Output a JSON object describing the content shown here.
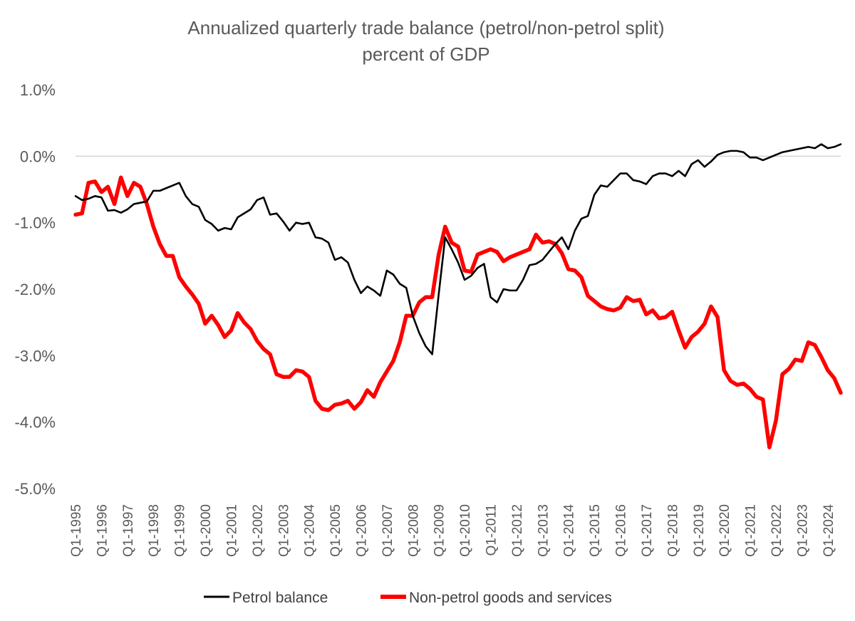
{
  "chart_data": {
    "type": "line",
    "title": "Annualized quarterly trade balance (petrol/non-petrol split)",
    "subtitle": "percent of GDP",
    "ylim": [
      -5.0,
      1.0
    ],
    "yticks": [
      1.0,
      0.0,
      -1.0,
      -2.0,
      -3.0,
      -4.0,
      -5.0
    ],
    "ytick_labels": [
      "1.0%",
      "0.0%",
      "-1.0%",
      "-2.0%",
      "-3.0%",
      "-4.0%",
      "-5.0%"
    ],
    "grid": false,
    "zero_line": true,
    "legend_position": "bottom",
    "x_start": "Q1-1995",
    "x_labels": [
      "Q1-1995",
      "Q1-1996",
      "Q1-1997",
      "Q1-1998",
      "Q1-1999",
      "Q1-2000",
      "Q1-2001",
      "Q1-2002",
      "Q1-2003",
      "Q1-2004",
      "Q1-2005",
      "Q1-2006",
      "Q1-2007",
      "Q1-2008",
      "Q1-2009",
      "Q1-2010",
      "Q1-2011",
      "Q1-2012",
      "Q1-2013",
      "Q1-2014",
      "Q1-2015",
      "Q1-2016",
      "Q1-2017",
      "Q1-2018",
      "Q1-2019",
      "Q1-2020",
      "Q1-2021",
      "Q1-2022",
      "Q1-2023",
      "Q1-2024"
    ],
    "series": [
      {
        "name": "Petrol balance",
        "color": "#000000",
        "values": [
          -0.6,
          -0.66,
          -0.64,
          -0.6,
          -0.62,
          -0.82,
          -0.81,
          -0.85,
          -0.8,
          -0.72,
          -0.7,
          -0.68,
          -0.52,
          -0.52,
          -0.48,
          -0.44,
          -0.4,
          -0.6,
          -0.72,
          -0.76,
          -0.96,
          -1.02,
          -1.12,
          -1.08,
          -1.1,
          -0.92,
          -0.86,
          -0.8,
          -0.66,
          -0.62,
          -0.88,
          -0.86,
          -0.98,
          -1.12,
          -1.0,
          -1.02,
          -1.0,
          -1.22,
          -1.24,
          -1.3,
          -1.56,
          -1.52,
          -1.6,
          -1.86,
          -2.06,
          -1.96,
          -2.02,
          -2.1,
          -1.72,
          -1.78,
          -1.92,
          -1.98,
          -2.4,
          -2.66,
          -2.86,
          -2.98,
          -2.08,
          -1.22,
          -1.4,
          -1.6,
          -1.86,
          -1.8,
          -1.68,
          -1.62,
          -2.12,
          -2.2,
          -2.0,
          -2.02,
          -2.02,
          -1.86,
          -1.64,
          -1.62,
          -1.56,
          -1.44,
          -1.32,
          -1.22,
          -1.4,
          -1.12,
          -0.94,
          -0.9,
          -0.58,
          -0.44,
          -0.46,
          -0.36,
          -0.26,
          -0.26,
          -0.36,
          -0.38,
          -0.42,
          -0.3,
          -0.26,
          -0.26,
          -0.3,
          -0.22,
          -0.3,
          -0.12,
          -0.06,
          -0.16,
          -0.08,
          0.02,
          0.06,
          0.08,
          0.08,
          0.06,
          -0.02,
          -0.02,
          -0.06,
          -0.02,
          0.02,
          0.06,
          0.08,
          0.1,
          0.12,
          0.14,
          0.12,
          0.18,
          0.12,
          0.14,
          0.18
        ]
      },
      {
        "name": "Non-petrol goods and services",
        "color": "#ff0000",
        "values": [
          -0.88,
          -0.86,
          -0.4,
          -0.38,
          -0.54,
          -0.46,
          -0.72,
          -0.32,
          -0.6,
          -0.4,
          -0.46,
          -0.72,
          -1.06,
          -1.32,
          -1.5,
          -1.5,
          -1.82,
          -1.96,
          -2.08,
          -2.22,
          -2.52,
          -2.4,
          -2.54,
          -2.72,
          -2.62,
          -2.36,
          -2.5,
          -2.6,
          -2.78,
          -2.9,
          -2.98,
          -3.28,
          -3.32,
          -3.32,
          -3.22,
          -3.24,
          -3.32,
          -3.68,
          -3.8,
          -3.82,
          -3.74,
          -3.72,
          -3.68,
          -3.8,
          -3.7,
          -3.52,
          -3.62,
          -3.4,
          -3.24,
          -3.08,
          -2.8,
          -2.4,
          -2.4,
          -2.2,
          -2.12,
          -2.12,
          -1.48,
          -1.06,
          -1.3,
          -1.36,
          -1.72,
          -1.74,
          -1.48,
          -1.44,
          -1.4,
          -1.44,
          -1.58,
          -1.52,
          -1.48,
          -1.44,
          -1.4,
          -1.18,
          -1.3,
          -1.28,
          -1.32,
          -1.46,
          -1.7,
          -1.72,
          -1.82,
          -2.1,
          -2.18,
          -2.26,
          -2.3,
          -2.32,
          -2.28,
          -2.12,
          -2.18,
          -2.16,
          -2.38,
          -2.32,
          -2.44,
          -2.42,
          -2.34,
          -2.62,
          -2.88,
          -2.72,
          -2.64,
          -2.52,
          -2.26,
          -2.42,
          -3.22,
          -3.38,
          -3.44,
          -3.42,
          -3.5,
          -3.62,
          -3.66,
          -4.38,
          -3.98,
          -3.28,
          -3.2,
          -3.06,
          -3.08,
          -2.8,
          -2.84,
          -3.02,
          -3.22,
          -3.34,
          -3.56
        ]
      }
    ]
  }
}
